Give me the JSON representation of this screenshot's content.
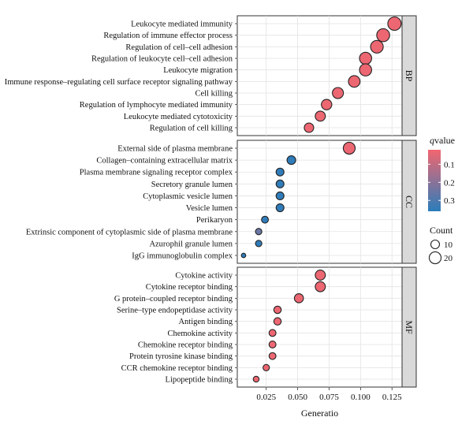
{
  "chart_data": {
    "type": "scatter",
    "xlabel": "Generatio",
    "ylabel": "",
    "xlim": [
      0.002,
      0.133
    ],
    "xticks": [
      0.025,
      0.05,
      0.075,
      0.1,
      0.125
    ],
    "xtick_labels": [
      "0.025",
      "0.050",
      "0.075",
      "0.100",
      "0.125"
    ],
    "grid": true,
    "legend_color": {
      "title_italic": "q",
      "title_rest": "value",
      "ticks": [
        0.1,
        0.2,
        0.3
      ],
      "tick_labels": [
        "0.1",
        "0.2",
        "0.3"
      ],
      "range": [
        0.02,
        0.36
      ],
      "low_color": "#f26670",
      "high_color": "#2a7dbb"
    },
    "legend_size": {
      "title": "Count",
      "entries": [
        10,
        20
      ],
      "entry_labels": [
        "10",
        "20"
      ]
    },
    "facets": [
      {
        "label": "BP",
        "terms": [
          {
            "name": "Leukocyte mediated immunity",
            "x": 0.127,
            "count": 26,
            "q": 0.03
          },
          {
            "name": "Regulation of immune effector process",
            "x": 0.118,
            "count": 24,
            "q": 0.03
          },
          {
            "name": "Regulation of cell–cell adhesion",
            "x": 0.113,
            "count": 23,
            "q": 0.03
          },
          {
            "name": "Regulation of leukocyte cell–cell adhesion",
            "x": 0.104,
            "count": 21,
            "q": 0.03
          },
          {
            "name": "Leukocyte migration",
            "x": 0.104,
            "count": 21,
            "q": 0.03
          },
          {
            "name": "Immune response–regulating cell surface receptor signaling pathway",
            "x": 0.095,
            "count": 19,
            "q": 0.03
          },
          {
            "name": "Cell killing",
            "x": 0.082,
            "count": 17,
            "q": 0.03
          },
          {
            "name": "Regulation of lymphocyte mediated immunity",
            "x": 0.073,
            "count": 15,
            "q": 0.03
          },
          {
            "name": "Leukocyte mediated cytotoxicity",
            "x": 0.068,
            "count": 14,
            "q": 0.03
          },
          {
            "name": "Regulation of cell killing",
            "x": 0.059,
            "count": 12,
            "q": 0.03
          }
        ]
      },
      {
        "label": "CC",
        "terms": [
          {
            "name": "External side of plasma membrane",
            "x": 0.091,
            "count": 20,
            "q": 0.03
          },
          {
            "name": "Collagen–containing extracellular matrix",
            "x": 0.045,
            "count": 10,
            "q": 0.35
          },
          {
            "name": "Plasma membrane signaling receptor complex",
            "x": 0.036,
            "count": 8,
            "q": 0.35
          },
          {
            "name": "Secretory granule lumen",
            "x": 0.036,
            "count": 8,
            "q": 0.35
          },
          {
            "name": "Cytoplasmic vesicle lumen",
            "x": 0.036,
            "count": 8,
            "q": 0.35
          },
          {
            "name": "Vesicle lumen",
            "x": 0.036,
            "count": 8,
            "q": 0.35
          },
          {
            "name": "Perikaryon",
            "x": 0.024,
            "count": 6,
            "q": 0.35
          },
          {
            "name": "Extrinsic component of cytoplasmic side of plasma membrane",
            "x": 0.019,
            "count": 5,
            "q": 0.25
          },
          {
            "name": "Azurophil granule lumen",
            "x": 0.019,
            "count": 5,
            "q": 0.35
          },
          {
            "name": "IgG immunoglobulin complex",
            "x": 0.007,
            "count": 2,
            "q": 0.35
          }
        ]
      },
      {
        "label": "MF",
        "terms": [
          {
            "name": "Cytokine activity",
            "x": 0.068,
            "count": 14,
            "q": 0.03
          },
          {
            "name": "Cytokine receptor binding",
            "x": 0.068,
            "count": 14,
            "q": 0.03
          },
          {
            "name": "G protein–coupled receptor binding",
            "x": 0.051,
            "count": 11,
            "q": 0.03
          },
          {
            "name": "Serine–type endopeptidase activity",
            "x": 0.034,
            "count": 7,
            "q": 0.03
          },
          {
            "name": "Antigen binding",
            "x": 0.034,
            "count": 7,
            "q": 0.03
          },
          {
            "name": "Chemokine activity",
            "x": 0.03,
            "count": 6,
            "q": 0.03
          },
          {
            "name": "Chemokine receptor binding",
            "x": 0.03,
            "count": 6,
            "q": 0.03
          },
          {
            "name": "Protein tyrosine kinase binding",
            "x": 0.03,
            "count": 6,
            "q": 0.03
          },
          {
            "name": "CCR chemokine receptor binding",
            "x": 0.025,
            "count": 5,
            "q": 0.03
          },
          {
            "name": "Lipopeptide binding",
            "x": 0.017,
            "count": 4,
            "q": 0.03
          }
        ]
      }
    ]
  }
}
